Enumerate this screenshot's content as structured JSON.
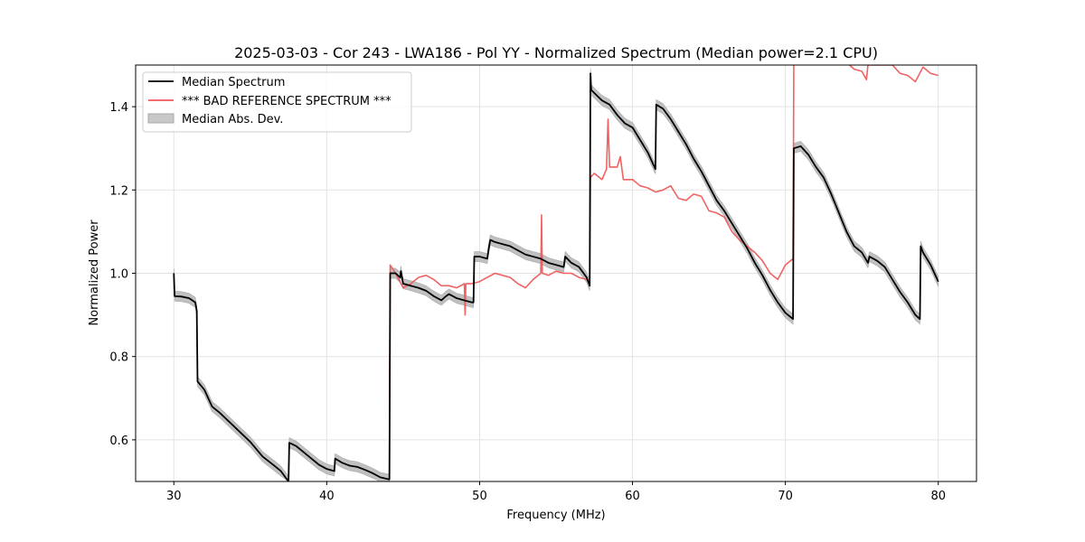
{
  "chart_data": {
    "type": "line",
    "title": "2025-03-03 - Cor 243 - LWA186 - Pol YY - Normalized Spectrum (Median power=2.1 CPU)",
    "xlabel": "Frequency (MHz)",
    "ylabel": "Normalized Power",
    "xlim": [
      27.5,
      82.5
    ],
    "ylim": [
      0.5,
      1.5
    ],
    "xticks": [
      30,
      40,
      50,
      60,
      70,
      80
    ],
    "yticks": [
      0.6,
      0.8,
      1.0,
      1.2,
      1.4
    ],
    "xtick_labels": [
      "30",
      "40",
      "50",
      "60",
      "70",
      "80"
    ],
    "ytick_labels": [
      "0.6",
      "0.8",
      "1.0",
      "1.2",
      "1.4"
    ],
    "grid": true,
    "legend_position": "top-left",
    "legend": [
      {
        "label": "Median Spectrum",
        "kind": "line",
        "color": "#000000"
      },
      {
        "label": "*** BAD REFERENCE SPECTRUM ***",
        "kind": "line",
        "color": "#f05a5a"
      },
      {
        "label": "Median Abs. Dev.",
        "kind": "band",
        "color": "#b0b0b0"
      }
    ],
    "series": [
      {
        "name": "Median Spectrum",
        "color": "#000000",
        "points": [
          [
            30.0,
            1.0
          ],
          [
            30.05,
            0.945
          ],
          [
            30.5,
            0.944
          ],
          [
            31.0,
            0.94
          ],
          [
            31.4,
            0.93
          ],
          [
            31.5,
            0.91
          ],
          [
            31.55,
            0.74
          ],
          [
            32.0,
            0.72
          ],
          [
            32.5,
            0.68
          ],
          [
            33.0,
            0.665
          ],
          [
            34.0,
            0.63
          ],
          [
            35.0,
            0.595
          ],
          [
            35.8,
            0.56
          ],
          [
            36.5,
            0.54
          ],
          [
            37.0,
            0.525
          ],
          [
            37.5,
            0.5
          ],
          [
            37.55,
            0.593
          ],
          [
            38.0,
            0.585
          ],
          [
            38.5,
            0.57
          ],
          [
            39.0,
            0.555
          ],
          [
            39.5,
            0.54
          ],
          [
            40.0,
            0.53
          ],
          [
            40.5,
            0.525
          ],
          [
            40.55,
            0.555
          ],
          [
            41.0,
            0.545
          ],
          [
            41.5,
            0.538
          ],
          [
            42.0,
            0.535
          ],
          [
            42.5,
            0.528
          ],
          [
            43.0,
            0.52
          ],
          [
            43.5,
            0.51
          ],
          [
            44.1,
            0.505
          ],
          [
            44.15,
            1.0
          ],
          [
            44.5,
            1.0
          ],
          [
            44.8,
            0.99
          ],
          [
            44.85,
            1.005
          ],
          [
            45.0,
            0.975
          ],
          [
            45.5,
            0.97
          ],
          [
            46.0,
            0.965
          ],
          [
            46.5,
            0.958
          ],
          [
            47.0,
            0.945
          ],
          [
            47.5,
            0.935
          ],
          [
            47.8,
            0.945
          ],
          [
            48.0,
            0.95
          ],
          [
            48.5,
            0.94
          ],
          [
            49.0,
            0.935
          ],
          [
            49.5,
            0.93
          ],
          [
            49.6,
            0.93
          ],
          [
            49.65,
            1.04
          ],
          [
            50.0,
            1.04
          ],
          [
            50.5,
            1.035
          ],
          [
            50.6,
            1.06
          ],
          [
            50.7,
            1.08
          ],
          [
            51.0,
            1.075
          ],
          [
            51.5,
            1.07
          ],
          [
            52.0,
            1.065
          ],
          [
            52.5,
            1.055
          ],
          [
            53.0,
            1.045
          ],
          [
            53.5,
            1.04
          ],
          [
            54.0,
            1.035
          ],
          [
            54.5,
            1.025
          ],
          [
            55.0,
            1.02
          ],
          [
            55.5,
            1.015
          ],
          [
            55.6,
            1.04
          ],
          [
            56.0,
            1.025
          ],
          [
            56.5,
            1.015
          ],
          [
            57.0,
            0.99
          ],
          [
            57.2,
            0.97
          ],
          [
            57.25,
            1.48
          ],
          [
            57.3,
            1.44
          ],
          [
            58.0,
            1.415
          ],
          [
            58.5,
            1.405
          ],
          [
            59.0,
            1.38
          ],
          [
            59.5,
            1.36
          ],
          [
            60.0,
            1.35
          ],
          [
            60.5,
            1.32
          ],
          [
            61.0,
            1.29
          ],
          [
            61.5,
            1.25
          ],
          [
            61.55,
            1.405
          ],
          [
            62.0,
            1.395
          ],
          [
            62.5,
            1.37
          ],
          [
            63.0,
            1.34
          ],
          [
            63.5,
            1.31
          ],
          [
            64.0,
            1.275
          ],
          [
            64.5,
            1.245
          ],
          [
            65.0,
            1.21
          ],
          [
            65.5,
            1.175
          ],
          [
            66.0,
            1.15
          ],
          [
            66.5,
            1.12
          ],
          [
            67.0,
            1.09
          ],
          [
            67.5,
            1.06
          ],
          [
            68.0,
            1.025
          ],
          [
            68.5,
            0.995
          ],
          [
            69.0,
            0.96
          ],
          [
            69.5,
            0.93
          ],
          [
            70.0,
            0.905
          ],
          [
            70.5,
            0.89
          ],
          [
            70.55,
            1.3
          ],
          [
            71.0,
            1.305
          ],
          [
            71.5,
            1.285
          ],
          [
            72.0,
            1.255
          ],
          [
            72.5,
            1.23
          ],
          [
            73.0,
            1.19
          ],
          [
            73.5,
            1.145
          ],
          [
            74.0,
            1.1
          ],
          [
            74.5,
            1.065
          ],
          [
            75.0,
            1.05
          ],
          [
            75.4,
            1.025
          ],
          [
            75.5,
            1.04
          ],
          [
            76.0,
            1.03
          ],
          [
            76.5,
            1.015
          ],
          [
            77.0,
            0.985
          ],
          [
            77.5,
            0.955
          ],
          [
            78.0,
            0.93
          ],
          [
            78.5,
            0.9
          ],
          [
            78.8,
            0.89
          ],
          [
            78.85,
            1.065
          ],
          [
            79.0,
            1.05
          ],
          [
            79.5,
            1.02
          ],
          [
            80.0,
            0.98
          ]
        ]
      },
      {
        "name": "*** BAD REFERENCE SPECTRUM ***",
        "color": "#f05a5a",
        "points": [
          [
            44.1,
            0.505
          ],
          [
            44.15,
            1.02
          ],
          [
            44.5,
            1.0
          ],
          [
            45.0,
            0.965
          ],
          [
            45.5,
            0.975
          ],
          [
            46.0,
            0.99
          ],
          [
            46.5,
            0.995
          ],
          [
            47.0,
            0.985
          ],
          [
            47.5,
            0.97
          ],
          [
            48.0,
            0.97
          ],
          [
            48.5,
            0.965
          ],
          [
            49.0,
            0.975
          ],
          [
            49.05,
            0.9
          ],
          [
            49.1,
            0.975
          ],
          [
            49.5,
            0.975
          ],
          [
            50.0,
            0.98
          ],
          [
            50.5,
            0.99
          ],
          [
            51.0,
            1.0
          ],
          [
            51.5,
            0.995
          ],
          [
            52.0,
            0.99
          ],
          [
            52.5,
            0.975
          ],
          [
            53.0,
            0.965
          ],
          [
            53.5,
            0.985
          ],
          [
            54.0,
            1.0
          ],
          [
            54.05,
            1.14
          ],
          [
            54.1,
            1.0
          ],
          [
            54.5,
            0.995
          ],
          [
            55.0,
            1.005
          ],
          [
            55.5,
            1.0
          ],
          [
            56.0,
            1.0
          ],
          [
            56.5,
            0.99
          ],
          [
            57.0,
            0.985
          ],
          [
            57.2,
            0.975
          ],
          [
            57.25,
            1.23
          ],
          [
            57.5,
            1.24
          ],
          [
            58.0,
            1.225
          ],
          [
            58.3,
            1.25
          ],
          [
            58.4,
            1.37
          ],
          [
            58.5,
            1.255
          ],
          [
            59.0,
            1.255
          ],
          [
            59.2,
            1.28
          ],
          [
            59.4,
            1.225
          ],
          [
            60.0,
            1.225
          ],
          [
            60.5,
            1.21
          ],
          [
            61.0,
            1.205
          ],
          [
            61.5,
            1.195
          ],
          [
            62.0,
            1.2
          ],
          [
            62.5,
            1.21
          ],
          [
            63.0,
            1.18
          ],
          [
            63.5,
            1.175
          ],
          [
            64.0,
            1.19
          ],
          [
            64.5,
            1.185
          ],
          [
            65.0,
            1.15
          ],
          [
            65.5,
            1.145
          ],
          [
            66.0,
            1.135
          ],
          [
            66.5,
            1.1
          ],
          [
            67.0,
            1.08
          ],
          [
            67.5,
            1.065
          ],
          [
            68.0,
            1.05
          ],
          [
            68.5,
            1.03
          ],
          [
            69.0,
            1.0
          ],
          [
            69.5,
            0.985
          ],
          [
            70.0,
            1.02
          ],
          [
            70.5,
            1.035
          ],
          [
            70.55,
            1.5
          ]
        ]
      },
      {
        "name": "*** BAD REFERENCE SPECTRUM ***",
        "color": "#f05a5a",
        "points": [
          [
            74.2,
            1.5
          ],
          [
            74.5,
            1.49
          ],
          [
            75.0,
            1.485
          ],
          [
            75.3,
            1.465
          ],
          [
            75.4,
            1.5
          ],
          [
            77.0,
            1.5
          ],
          [
            77.5,
            1.48
          ],
          [
            78.0,
            1.475
          ],
          [
            78.5,
            1.46
          ],
          [
            79.0,
            1.495
          ],
          [
            79.5,
            1.48
          ],
          [
            80.0,
            1.475
          ]
        ]
      }
    ],
    "band": {
      "name": "Median Abs. Dev.",
      "color": "#b0b0b0",
      "half_width": 0.012
    }
  }
}
